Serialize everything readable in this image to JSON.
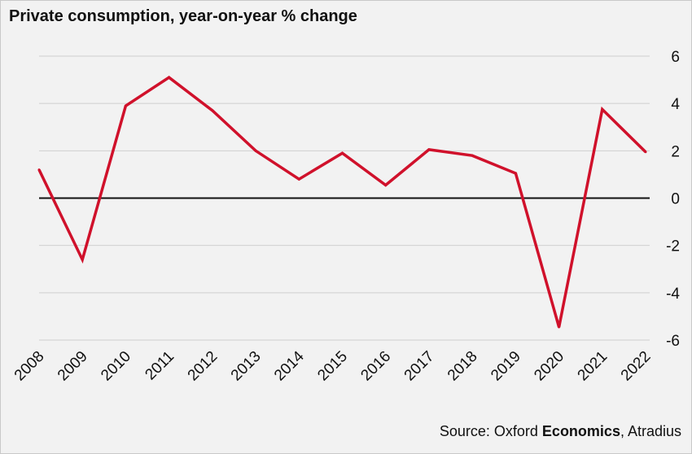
{
  "chart_data": {
    "type": "line",
    "title": "Private consumption, year-on-year % change",
    "xlabel": "",
    "ylabel": "",
    "x": [
      "2008",
      "2009",
      "2010",
      "2011",
      "2012",
      "2013",
      "2014",
      "2015",
      "2016",
      "2017",
      "2018",
      "2019",
      "2020",
      "2021",
      "2022"
    ],
    "series": [
      {
        "values": [
          1.2,
          -2.6,
          3.9,
          5.1,
          3.7,
          2.0,
          0.8,
          1.9,
          0.55,
          2.05,
          1.8,
          1.05,
          -5.45,
          3.75,
          1.95
        ]
      }
    ],
    "ylim": [
      -6,
      6
    ],
    "yticks": [
      "6",
      "4",
      "2",
      "0",
      "-2",
      "-4",
      "-6"
    ],
    "ytick_values": [
      6,
      4,
      2,
      0,
      -2,
      -4,
      -6
    ],
    "grid": true,
    "legend": "none",
    "line_color": "#d0112b",
    "zero_line_color": "#111111",
    "grid_color": "#cfcfcf"
  },
  "source": {
    "prefix": "Source: Oxford ",
    "bold": "Economics",
    "suffix": ", Atradius"
  }
}
